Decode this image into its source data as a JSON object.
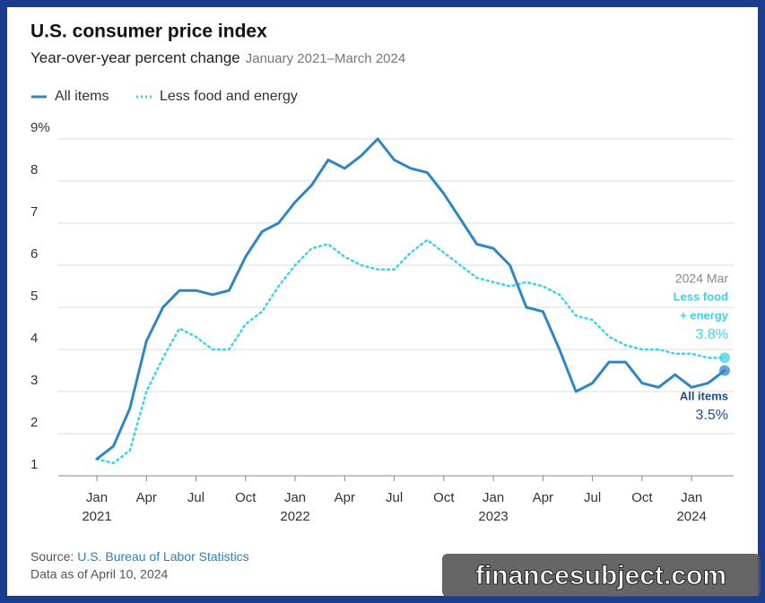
{
  "chart_data": {
    "type": "line",
    "title": "U.S. consumer price index",
    "subtitle": "Year-over-year percent change",
    "date_range": "January 2021–March 2024",
    "categories": [
      "Jan",
      null,
      null,
      "Apr",
      null,
      null,
      "Jul",
      null,
      null,
      "Oct",
      null,
      null,
      "Jan",
      null,
      null,
      "Apr",
      null,
      null,
      "Jul",
      null,
      null,
      "Oct",
      null,
      null,
      "Jan",
      null,
      null,
      "Apr",
      null,
      null,
      "Jul",
      null,
      null,
      "Oct",
      null,
      null,
      "Jan",
      null,
      null
    ],
    "year_labels": [
      "2021",
      null,
      null,
      null,
      null,
      null,
      null,
      null,
      null,
      null,
      null,
      null,
      "2022",
      null,
      null,
      null,
      null,
      null,
      null,
      null,
      null,
      null,
      null,
      null,
      "2023",
      null,
      null,
      null,
      null,
      null,
      null,
      null,
      null,
      null,
      null,
      null,
      "2024",
      null,
      null
    ],
    "series": [
      {
        "name": "All items",
        "color": "#2f86c4",
        "style": "solid",
        "values": [
          1.4,
          1.7,
          2.6,
          4.2,
          5.0,
          5.4,
          5.4,
          5.3,
          5.4,
          6.2,
          6.8,
          7.0,
          7.5,
          7.9,
          8.5,
          8.3,
          8.6,
          9.0,
          8.5,
          8.3,
          8.2,
          7.7,
          7.1,
          6.5,
          6.4,
          6.0,
          5.0,
          4.9,
          4.0,
          3.0,
          3.2,
          3.7,
          3.7,
          3.2,
          3.1,
          3.4,
          3.1,
          3.2,
          3.5
        ]
      },
      {
        "name": "Less food and energy",
        "color": "#3fd3e6",
        "style": "dotted",
        "values": [
          1.4,
          1.3,
          1.6,
          3.0,
          3.8,
          4.5,
          4.3,
          4.0,
          4.0,
          4.6,
          4.9,
          5.5,
          6.0,
          6.4,
          6.5,
          6.2,
          6.0,
          5.9,
          5.9,
          6.3,
          6.6,
          6.3,
          6.0,
          5.7,
          5.6,
          5.5,
          5.6,
          5.5,
          5.3,
          4.8,
          4.7,
          4.3,
          4.1,
          4.0,
          4.0,
          3.9,
          3.9,
          3.8,
          3.8
        ]
      }
    ],
    "ylim": [
      1,
      9
    ],
    "yticks": [
      1,
      2,
      3,
      4,
      5,
      6,
      7,
      8,
      {
        "value": 9,
        "label": "9%"
      }
    ],
    "grid": true,
    "end_annotation": {
      "date": "2024 Mar",
      "core_label": [
        "Less food",
        "+ energy"
      ],
      "core_value_label": "3.8%",
      "all_label": "All items",
      "all_value_label": "3.5%"
    },
    "source_prefix": "Source:",
    "source": "U.S. Bureau of Labor Statistics",
    "data_note": "Data as of April 10, 2024",
    "watermark": "financesubject.com"
  }
}
